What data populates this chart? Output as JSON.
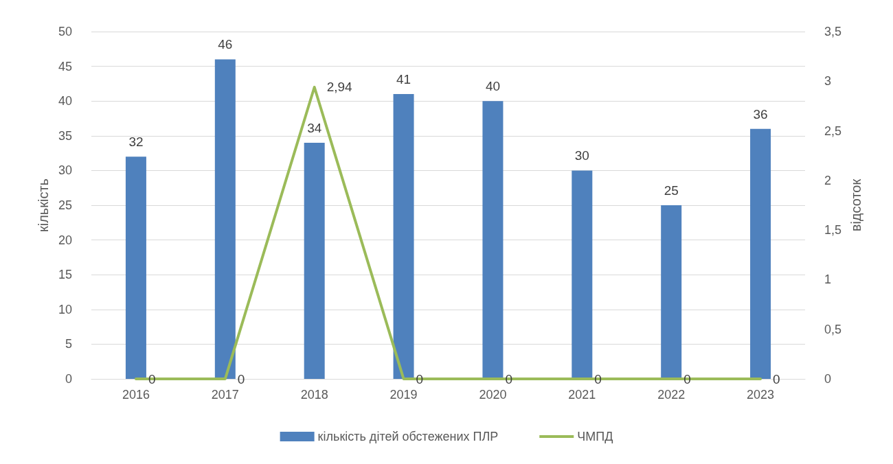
{
  "chart_data": {
    "type": "bar",
    "ylabel": "кількість",
    "y2label": "відсоток",
    "categories": [
      "2016",
      "2017",
      "2018",
      "2019",
      "2020",
      "2021",
      "2022",
      "2023"
    ],
    "series": [
      {
        "name": "кількість дітей обстежених ПЛР",
        "color": "#4f81bd",
        "values": [
          32,
          46,
          34,
          41,
          40,
          30,
          25,
          36
        ],
        "value_labels": [
          "32",
          "46",
          "34",
          "41",
          "40",
          "30",
          "25",
          "36"
        ]
      },
      {
        "name": "ЧМПД",
        "type": "line",
        "axis": "y2",
        "color": "#9bbb59",
        "values": [
          0,
          0,
          2.94,
          0,
          0,
          0,
          0,
          0
        ],
        "value_labels": [
          "0",
          "0",
          "2,94",
          "0",
          "0",
          "0",
          "0",
          "0"
        ]
      }
    ],
    "ylim": [
      0,
      50
    ],
    "yticks": [
      0,
      5,
      10,
      15,
      20,
      25,
      30,
      35,
      40,
      45,
      50
    ],
    "y2lim": [
      0,
      3.5
    ],
    "y2ticks": [
      0,
      {
        "value": 0.5,
        "label": "0,5"
      },
      1,
      {
        "value": 1.5,
        "label": "1,5"
      },
      2,
      {
        "value": 2.5,
        "label": "2,5"
      },
      3,
      {
        "value": 3.5,
        "label": "3,5"
      }
    ],
    "grid": "y",
    "legend": "bottom",
    "marker": "none",
    "line_style": "solid"
  }
}
